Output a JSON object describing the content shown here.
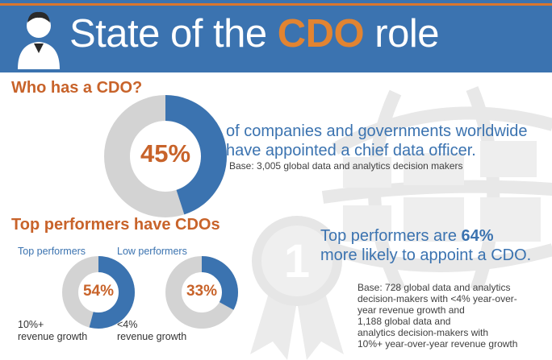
{
  "header": {
    "title_before": "State of the ",
    "title_accent": "CDO",
    "title_after": " role",
    "icon": "user-icon"
  },
  "section1": {
    "heading": "Who has a CDO?",
    "donut_value": "45%",
    "donut_fraction": 0.45,
    "headline_line1": "of companies and governments worldwide",
    "headline_line2": "have appointed a chief data officer.",
    "base": "Base: 3,005 global data and analytics decision makers"
  },
  "section2": {
    "heading": "Top performers have CDOs",
    "top": {
      "label": "Top performers",
      "value": "54%",
      "fraction": 0.54,
      "caption_line1": "10%+",
      "caption_line2": "revenue growth"
    },
    "low": {
      "label": "Low performers",
      "value": "33%",
      "fraction": 0.33,
      "caption_line1": "<4%",
      "caption_line2": "revenue growth"
    },
    "headline_prefix": "Top performers are ",
    "headline_bold": "64%",
    "headline_line2": "more likely to appoint a CDO.",
    "base_lines": [
      "Base: 728 global data and analytics",
      "decision-makers with <4% year-over-",
      "year revenue growth and",
      "1,188 global data and",
      "analytics decision-makers with",
      "10%+ year-over-year revenue growth"
    ],
    "ribbon_number": "1"
  },
  "colors": {
    "blue": "#3b73b0",
    "orange": "#c8632a",
    "light_gray": "#d3d3d3",
    "decor_gray": "#e9e9e9"
  },
  "icons": [
    "user-icon",
    "globe-icon",
    "award-ribbon-icon"
  ]
}
